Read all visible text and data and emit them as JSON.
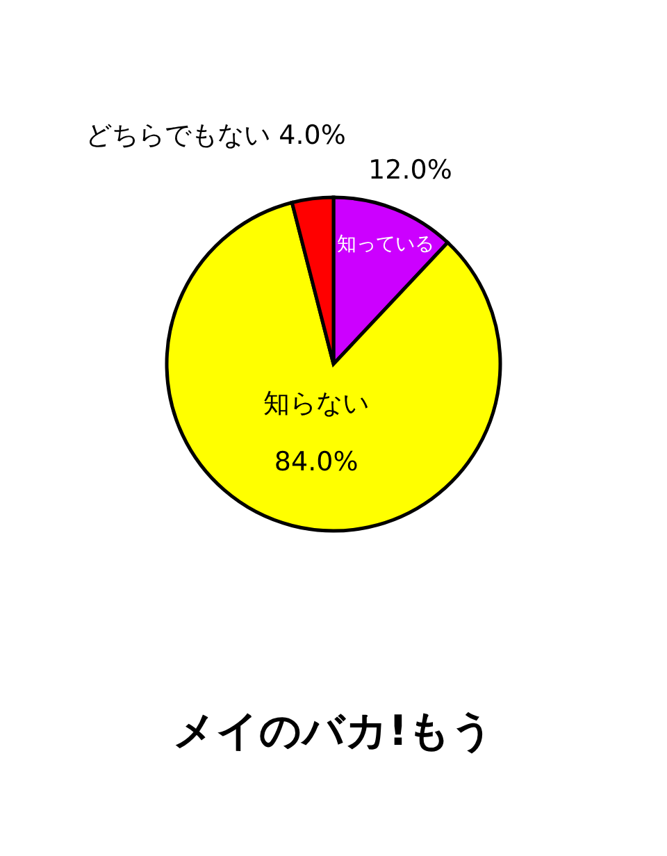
{
  "chart_data": {
    "type": "pie",
    "categories": [
      "知っている",
      "知らない",
      "どちらでもない"
    ],
    "values": [
      12.0,
      84.0,
      4.0
    ],
    "colors": [
      "#cc00ff",
      "#ffff00",
      "#ff0000"
    ],
    "value_labels": [
      "12.0%",
      "84.0%",
      "4.0%"
    ],
    "annotations": [
      "メイのバカ!もう"
    ],
    "legend": false
  }
}
